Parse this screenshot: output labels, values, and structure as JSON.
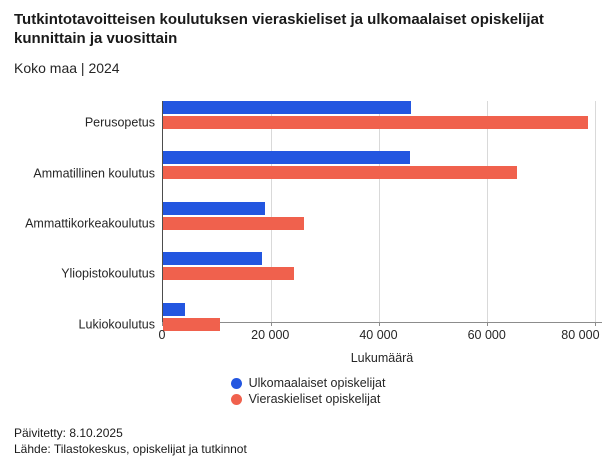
{
  "header": {
    "title": "Tutkintotavoitteisen koulutuksen vieraskieliset ja ulkomaalaiset opiskelijat kunnittain ja vuosittain",
    "subtitle": "Koko maa | 2024"
  },
  "chart_data": {
    "type": "bar",
    "orientation": "horizontal",
    "title": "Tutkintotavoitteisen koulutuksen vieraskieliset ja ulkomaalaiset opiskelijat kunnittain ja vuosittain",
    "subtitle": "Koko maa | 2024",
    "categories": [
      "Perusopetus",
      "Ammatillinen koulutus",
      "Ammattikorkeakoulutus",
      "Yliopistokoulutus",
      "Lukiokoulutus"
    ],
    "series": [
      {
        "name": "Ulkomaalaiset opiskelijat",
        "color": "#2356e0",
        "values": [
          45900,
          45700,
          18800,
          18300,
          4100
        ]
      },
      {
        "name": "Vieraskieliset opiskelijat",
        "color": "#f0614d",
        "values": [
          78700,
          65600,
          26200,
          24200,
          10600
        ]
      }
    ],
    "xlabel": "Lukumäärä",
    "ylabel": "",
    "xlim": [
      0,
      81300
    ],
    "xticks": {
      "values": [
        0,
        20000,
        40000,
        60000,
        80000
      ],
      "labels": [
        "0",
        "20 000",
        "40 000",
        "60 000",
        "80 000"
      ]
    },
    "grid": "vertical",
    "legend_position": "bottom"
  },
  "colors": {
    "gridline": "#d9d9d9",
    "axis": "#8c8c8c"
  },
  "footer": {
    "updated": "Päivitetty: 8.10.2025",
    "source": "Lähde: Tilastokeskus, opiskelijat ja tutkinnot"
  }
}
